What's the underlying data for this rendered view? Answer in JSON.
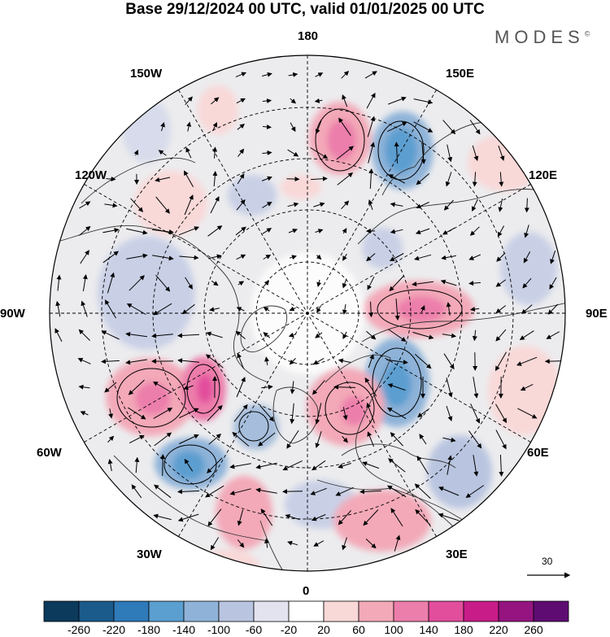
{
  "header": {
    "title": "Base 29/12/2024 00 UTC, valid 01/01/2025 00 UTC"
  },
  "brand": {
    "name": "MODES",
    "mark": "©"
  },
  "map": {
    "projection": "north-polar-stereographic",
    "longitude_labels": [
      "180",
      "150E",
      "120E",
      "90E",
      "60E",
      "30E",
      "0",
      "30W",
      "60W",
      "90W",
      "120W",
      "150W"
    ]
  },
  "vector_scale": {
    "value": "30"
  },
  "colorbar": {
    "ticks": [
      "-260",
      "-220",
      "-180",
      "-140",
      "-100",
      "-60",
      "-20",
      "20",
      "60",
      "100",
      "140",
      "180",
      "220",
      "260"
    ],
    "colors": [
      "#0b3a5c",
      "#1a5b8c",
      "#2f7ab8",
      "#5b9ed0",
      "#8fb3d8",
      "#b9c5e0",
      "#e3e3ef",
      "#ffffff",
      "#f9d8d8",
      "#f3a9b8",
      "#ec7eab",
      "#e24d9c",
      "#c81c88",
      "#951480",
      "#5f0c72"
    ]
  }
}
